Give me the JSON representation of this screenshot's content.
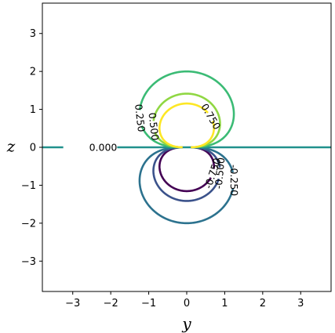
{
  "chart_data": {
    "type": "contour",
    "title": "",
    "xlabel": "y",
    "ylabel": "z",
    "xlim": [
      -3.8,
      3.8
    ],
    "ylim": [
      -3.8,
      3.8
    ],
    "xticks": [
      -3,
      -2,
      -1,
      0,
      1,
      2,
      3
    ],
    "yticks": [
      -3,
      -2,
      -1,
      0,
      1,
      2,
      3
    ],
    "xtick_labels": [
      "−3",
      "−2",
      "−1",
      "0",
      "1",
      "2",
      "3"
    ],
    "ytick_labels": [
      "−3",
      "−2",
      "−1",
      "0",
      "1",
      "2",
      "3"
    ],
    "grid": false,
    "field": "z/(y^2+z^2)^(3/2)",
    "levels": [
      {
        "value": -0.75,
        "label": "-0.750",
        "color": "#440154"
      },
      {
        "value": -0.5,
        "label": "-0.500",
        "color": "#3b528b"
      },
      {
        "value": -0.25,
        "label": "-0.250",
        "color": "#2c728e"
      },
      {
        "value": 0.0,
        "label": "0.000",
        "color": "#21918c"
      },
      {
        "value": 0.25,
        "label": "0.250",
        "color": "#3bbb75"
      },
      {
        "value": 0.5,
        "label": "0.500",
        "color": "#90d743"
      },
      {
        "value": 0.75,
        "label": "0.750",
        "color": "#fde725"
      }
    ]
  }
}
